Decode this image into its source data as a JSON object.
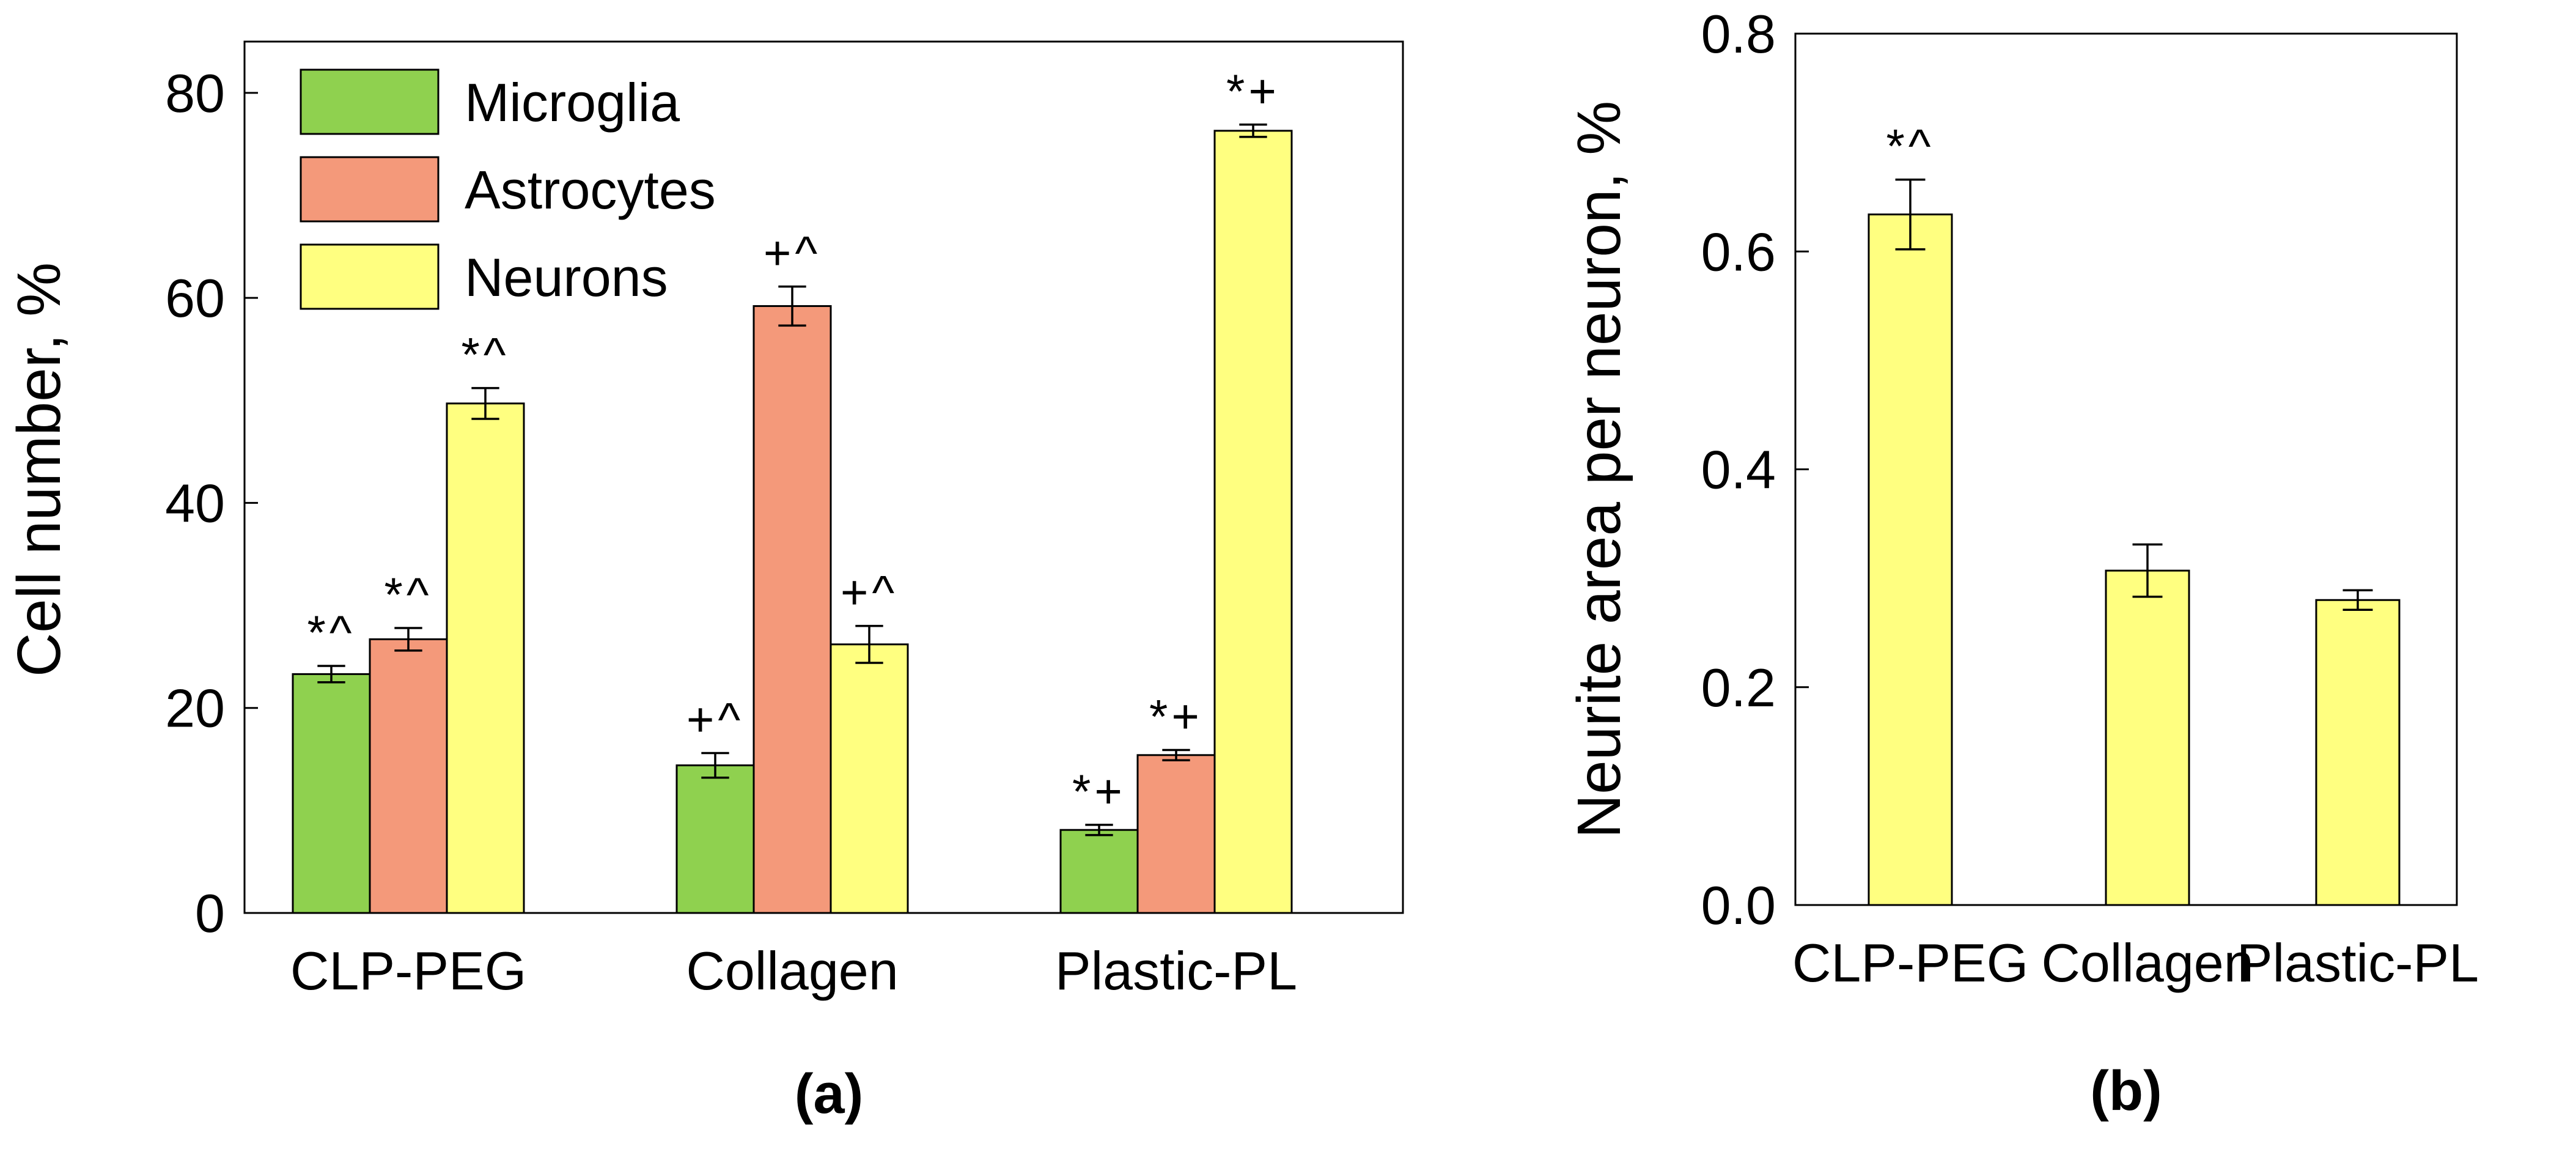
{
  "colors": {
    "Microglia": "#8fd14f",
    "Astrocytes": "#f4997a",
    "Neurons": "#ffff80"
  },
  "chart_data": [
    {
      "type": "bar",
      "panel_label": "(a)",
      "categories": [
        "CLP-PEG",
        "Collagen",
        "Plastic-PL"
      ],
      "ylabel": "Cell number, %",
      "xlabel": "",
      "ylim": [
        0,
        85
      ],
      "yticks": [
        0,
        20,
        40,
        60,
        80
      ],
      "grid": false,
      "legend": {
        "placement": "top-left",
        "entries": [
          "Microglia",
          "Astrocytes",
          "Neurons"
        ]
      },
      "series": [
        {
          "name": "Microglia",
          "values": [
            23.3,
            14.4,
            8.1
          ],
          "errors": [
            0.8,
            1.2,
            0.5
          ],
          "annotations": [
            "*^",
            "+^",
            "*+"
          ]
        },
        {
          "name": "Astrocytes",
          "values": [
            26.7,
            59.2,
            15.4
          ],
          "errors": [
            1.1,
            1.9,
            0.5
          ],
          "annotations": [
            "*^",
            "+^",
            "*+"
          ]
        },
        {
          "name": "Neurons",
          "values": [
            49.7,
            26.2,
            76.3
          ],
          "errors": [
            1.5,
            1.8,
            0.6
          ],
          "annotations": [
            "*^",
            "+^",
            "*+"
          ]
        }
      ]
    },
    {
      "type": "bar",
      "panel_label": "(b)",
      "categories": [
        "CLP-PEG",
        "Collagen",
        "Plastic-PL"
      ],
      "ylabel": "Neurite area per neuron, %",
      "xlabel": "",
      "ylim": [
        0,
        0.8
      ],
      "yticks": [
        "0.0",
        "0.2",
        "0.4",
        "0.6",
        "0.8"
      ],
      "grid": false,
      "series": [
        {
          "name": "Neurons",
          "values": [
            0.634,
            0.307,
            0.28
          ],
          "errors": [
            0.032,
            0.024,
            0.009
          ],
          "annotations": [
            "*^",
            "",
            ""
          ]
        }
      ]
    }
  ]
}
